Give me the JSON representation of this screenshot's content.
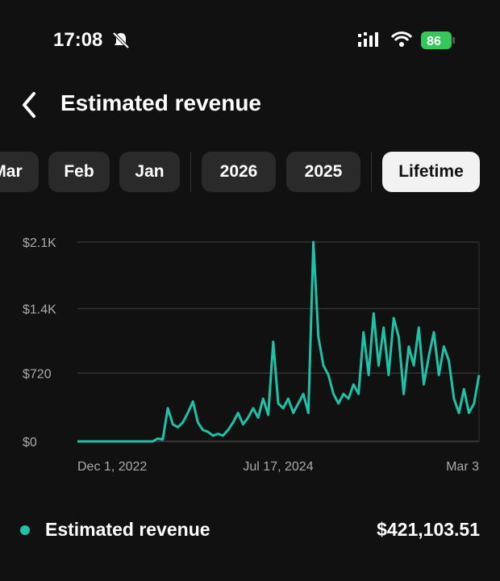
{
  "status_bar": {
    "time": "17:08",
    "battery": "86"
  },
  "header": {
    "title": "Estimated revenue"
  },
  "tabs": [
    "Mar",
    "Feb",
    "Jan",
    "2026",
    "2025",
    "Lifetime"
  ],
  "selected_tab": "Lifetime",
  "chart_data": {
    "type": "line",
    "categories": [
      "Dec 1, 2022",
      null,
      null,
      null,
      null,
      null,
      null,
      null,
      null,
      null,
      null,
      null,
      null,
      null,
      null,
      null,
      null,
      null,
      null,
      null,
      null,
      null,
      null,
      null,
      null,
      null,
      null,
      null,
      null,
      null,
      null,
      null,
      null,
      null,
      null,
      null,
      null,
      null,
      null,
      null,
      "Jul 17, 2024",
      null,
      null,
      null,
      null,
      null,
      null,
      null,
      null,
      null,
      null,
      null,
      null,
      null,
      null,
      null,
      null,
      null,
      null,
      null,
      null,
      null,
      null,
      null,
      null,
      null,
      null,
      null,
      null,
      null,
      null,
      null,
      null,
      null,
      null,
      null,
      null,
      null,
      null,
      null,
      "Mar 3"
    ],
    "series": [
      {
        "name": "Estimated revenue",
        "color": "#20c2a7",
        "values": [
          0,
          0,
          0,
          0,
          0,
          0,
          0,
          0,
          0,
          0,
          0,
          0,
          0,
          0,
          0,
          0,
          30,
          20,
          350,
          180,
          150,
          200,
          300,
          420,
          200,
          120,
          100,
          60,
          80,
          60,
          120,
          200,
          300,
          180,
          250,
          350,
          250,
          450,
          280,
          1050,
          400,
          350,
          450,
          300,
          400,
          500,
          300,
          2100,
          1100,
          800,
          700,
          500,
          400,
          500,
          450,
          600,
          500,
          1150,
          700,
          1350,
          800,
          1200,
          700,
          1300,
          1100,
          500,
          1000,
          800,
          1200,
          600,
          900,
          1150,
          700,
          1000,
          850,
          450,
          300,
          550,
          300,
          400,
          700
        ]
      }
    ],
    "ylim": [
      0,
      2100
    ],
    "yticks": [
      {
        "value": 0,
        "label": "$0"
      },
      {
        "value": 720,
        "label": "$720"
      },
      {
        "value": 1400,
        "label": "$1.4K"
      },
      {
        "value": 2100,
        "label": "$2.1K"
      }
    ],
    "grid": true
  },
  "summary": {
    "label": "Estimated revenue",
    "total": "$421,103.51"
  }
}
